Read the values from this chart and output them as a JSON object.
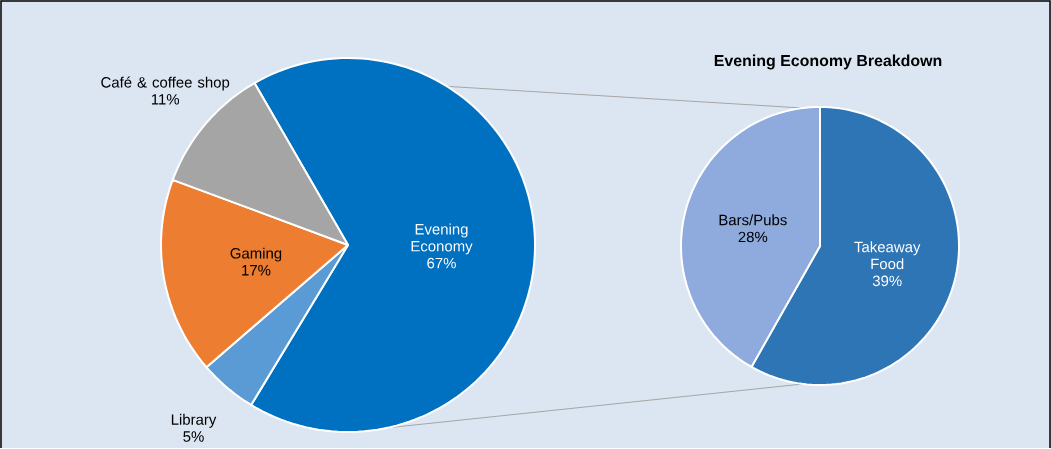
{
  "chart_data": [
    {
      "type": "pie",
      "categories": [
        "Evening Economy",
        "Library",
        "Gaming",
        "Café & coffee shop"
      ],
      "values": [
        67,
        5,
        17,
        11
      ],
      "value_labels": [
        "67%",
        "5%",
        "17%",
        "11%"
      ],
      "colors": [
        "#0070c0",
        "#5b9bd5",
        "#ed7d31",
        "#a5a5a5"
      ]
    },
    {
      "type": "pie",
      "title": "Evening Economy Breakdown",
      "categories": [
        "Takeaway Food",
        "Bars/Pubs"
      ],
      "values": [
        39,
        28
      ],
      "value_labels": [
        "39%",
        "28%"
      ],
      "colors": [
        "#2e75b6",
        "#8faadc"
      ]
    }
  ]
}
